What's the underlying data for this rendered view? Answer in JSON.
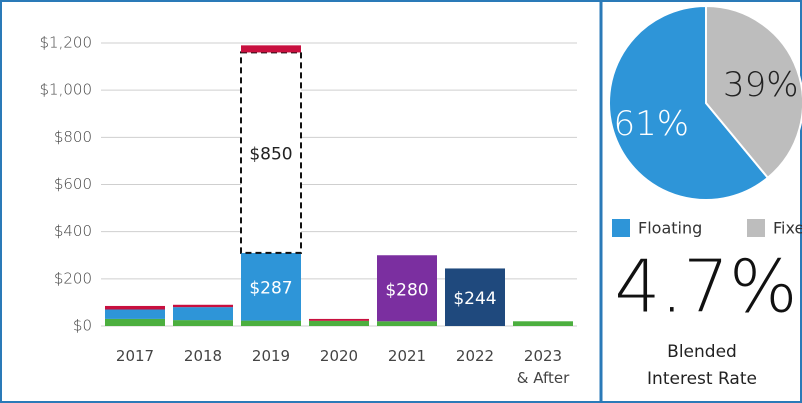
{
  "chart_data": [
    {
      "type": "bar",
      "stacked": true,
      "categories": [
        "2017",
        "2018",
        "2019",
        "2020",
        "2021",
        "2022",
        "2023\n& After"
      ],
      "series": [
        {
          "color": "#4caf3f",
          "values": [
            30,
            25,
            23,
            22,
            20,
            0,
            20
          ]
        },
        {
          "color": "#2e95d8",
          "values": [
            40,
            55,
            287,
            0,
            0,
            0,
            0
          ],
          "value_labels": [
            null,
            null,
            "$287",
            null,
            null,
            null,
            null
          ]
        },
        {
          "color": "#7b2fa0",
          "values": [
            0,
            0,
            0,
            0,
            280,
            0,
            0
          ],
          "value_labels": [
            null,
            null,
            null,
            null,
            "$280",
            null,
            null
          ]
        },
        {
          "color": "#1f497d",
          "values": [
            0,
            0,
            0,
            0,
            0,
            244,
            0
          ],
          "value_labels": [
            null,
            null,
            null,
            null,
            null,
            "$244",
            null
          ]
        },
        {
          "color": "#ffffff",
          "dashed": true,
          "values": [
            0,
            0,
            850,
            0,
            0,
            0,
            0
          ],
          "value_labels": [
            null,
            null,
            "$850",
            null,
            null,
            null,
            null
          ]
        },
        {
          "color": "#c8103f",
          "values": [
            15,
            10,
            30,
            8,
            0,
            0,
            0
          ]
        }
      ],
      "ylim": [
        0,
        1200
      ],
      "yticks": [
        {
          "value": 0,
          "label": "$0"
        },
        {
          "value": 200,
          "label": "$200"
        },
        {
          "value": 400,
          "label": "$400"
        },
        {
          "value": 600,
          "label": "$600"
        },
        {
          "value": 800,
          "label": "$800"
        },
        {
          "value": 1000,
          "label": "$1,000"
        },
        {
          "value": 1200,
          "label": "$1,200"
        }
      ],
      "grid": true
    },
    {
      "type": "pie",
      "categories": [
        "Floating",
        "Fixed"
      ],
      "values": [
        61,
        39
      ],
      "value_labels": [
        "61%",
        "39%"
      ],
      "colors": [
        "#2e95d8",
        "#bdbdbd"
      ],
      "legend": "bottom"
    }
  ],
  "stat": {
    "value": "4.7%",
    "label": "Blended\nInterest Rate"
  }
}
